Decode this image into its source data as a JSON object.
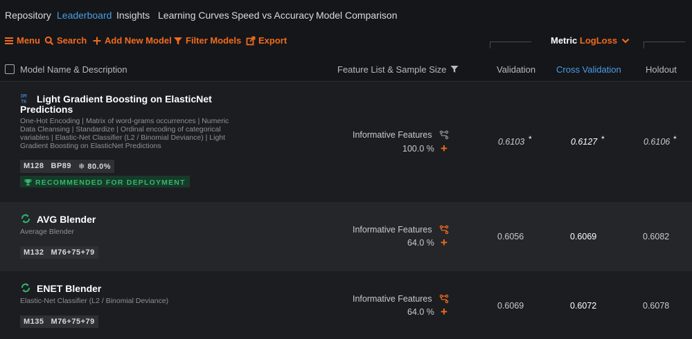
{
  "nav": {
    "tabs": [
      {
        "label": "Repository"
      },
      {
        "label": "Leaderboard"
      },
      {
        "label": "Insights"
      },
      {
        "label": "Learning Curves"
      },
      {
        "label": "Speed vs Accuracy"
      },
      {
        "label": "Model Comparison"
      }
    ],
    "active_tab": "Leaderboard"
  },
  "toolbar": {
    "menu_label": "Menu",
    "search_label": "Search",
    "add_label": "Add New Model",
    "filter_label": "Filter Models",
    "export_label": "Export",
    "metric_label": "Metric",
    "metric_value": "LogLoss"
  },
  "columns": {
    "name": "Model Name & Description",
    "features": "Feature List & Sample Size",
    "validation": "Validation",
    "cross_validation": "Cross Validation",
    "holdout": "Holdout"
  },
  "models": [
    {
      "title_line1": "Light Gradient Boosting on ElasticNet",
      "title_line2": "Predictions",
      "icon_text": "DM TK",
      "desc_lines": [
        "One-Hot Encoding | Matrix of word-grams occurrences | Numeric",
        "Data Cleansing | Standardize | Ordinal encoding of categorical",
        "variables | Elastic-Net Classifier (L2 / Binomial Deviance) | Light",
        "Gradient Boosting on ElasticNet Predictions"
      ],
      "badges": [
        "M128",
        "BP89",
        "❄ 80.0%"
      ],
      "recommendation": "RECOMMENDED FOR DEPLOYMENT",
      "feature_list": "Informative Features",
      "sample_size": "100.0 %",
      "validation": "0.6103",
      "cross_validation": "0.6127",
      "holdout": "0.6106",
      "star": "*"
    },
    {
      "title": "AVG Blender",
      "desc": "Average Blender",
      "badges": [
        "M132",
        "M76+75+79"
      ],
      "feature_list": "Informative Features",
      "sample_size": "64.0 %",
      "validation": "0.6056",
      "cross_validation": "0.6069",
      "holdout": "0.6082"
    },
    {
      "title": "ENET Blender",
      "desc": "Elastic-Net Classifier (L2 / Binomial Deviance)",
      "badges": [
        "M135",
        "M76+75+79"
      ],
      "feature_list": "Informative Features",
      "sample_size": "64.0 %",
      "validation": "0.6069",
      "cross_validation": "0.6072",
      "holdout": "0.6078"
    }
  ],
  "colors": {
    "accent_orange": "#f26b1d",
    "accent_blue": "#4a9de5",
    "recommend_green": "#36b86a",
    "blender_green": "#2fb56a"
  },
  "icons": [
    "hamburger-icon",
    "search-icon",
    "plus-icon",
    "filter-icon",
    "export-icon",
    "chevron-down-icon",
    "funnel-icon",
    "branch-icon",
    "trophy-icon",
    "blender-icon"
  ]
}
